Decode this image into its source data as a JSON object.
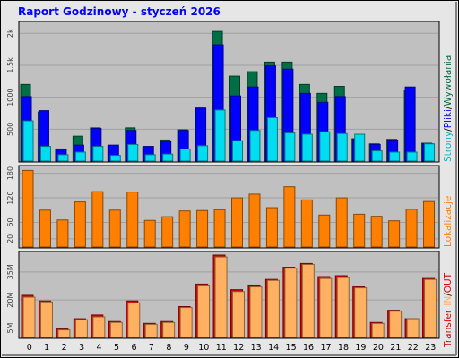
{
  "window": {
    "title": "Raport Godzinowy -  styczeń 2026"
  },
  "colors": {
    "background": "#e6e6e6",
    "plot_background": "#c0c0c0",
    "title_text": "#0000ff",
    "pages": "#006e46",
    "files": "#0000ff",
    "hits": "#00dcf0",
    "visits": "#ff8000",
    "kbytes_out": "#dc0000",
    "kbytes_in": "#ffb060"
  },
  "legend": {
    "strony": "Strony",
    "sep1": "/",
    "pliki": "Pliki",
    "sep2": "/",
    "wywolania": "Wywołania",
    "lokalizacje": "Lokalizacje",
    "transfer": "Transfer",
    "in": "IN",
    "sep3": "/",
    "out": "OUT"
  },
  "chart_data": [
    {
      "type": "bar",
      "name": "requests",
      "categories": [
        "0",
        "1",
        "2",
        "3",
        "4",
        "5",
        "6",
        "7",
        "8",
        "9",
        "10",
        "11",
        "12",
        "13",
        "14",
        "15",
        "16",
        "17",
        "18",
        "19",
        "20",
        "21",
        "22",
        "23"
      ],
      "ytick_labels": [
        "2k",
        "1.5k",
        "1000",
        "500"
      ],
      "ytick_values": [
        2000,
        1500,
        1000,
        500
      ],
      "ylim": [
        0,
        2130
      ],
      "series": [
        {
          "name": "Strony",
          "values": [
            1200,
            770,
            180,
            390,
            520,
            240,
            520,
            220,
            330,
            490,
            830,
            2030,
            1330,
            1400,
            1550,
            1550,
            1200,
            1060,
            1170,
            350,
            270,
            340,
            1100,
            280
          ]
        },
        {
          "name": "Pliki",
          "values": [
            1010,
            790,
            190,
            250,
            510,
            250,
            480,
            230,
            310,
            480,
            830,
            1820,
            1020,
            1160,
            1490,
            1440,
            1060,
            920,
            1010,
            340,
            260,
            330,
            1160,
            270
          ]
        },
        {
          "name": "Wywołania",
          "values": [
            630,
            230,
            100,
            140,
            230,
            90,
            260,
            100,
            110,
            190,
            240,
            800,
            320,
            480,
            680,
            440,
            420,
            460,
            430,
            420,
            160,
            140,
            140,
            270
          ]
        }
      ]
    },
    {
      "type": "bar",
      "name": "visits",
      "categories": [
        "0",
        "1",
        "2",
        "3",
        "4",
        "5",
        "6",
        "7",
        "8",
        "9",
        "10",
        "11",
        "12",
        "13",
        "14",
        "15",
        "16",
        "17",
        "18",
        "19",
        "20",
        "21",
        "22",
        "23"
      ],
      "ytick_labels": [
        "180",
        "120",
        "60",
        "20"
      ],
      "ytick_values": [
        180,
        120,
        60,
        20
      ],
      "ylim": [
        0,
        190
      ],
      "series": [
        {
          "name": "Lokalizacje",
          "values": [
            187,
            90,
            66,
            110,
            135,
            90,
            134,
            65,
            74,
            88,
            89,
            91,
            120,
            129,
            96,
            147,
            115,
            78,
            120,
            80,
            75,
            64,
            92,
            111
          ]
        }
      ]
    },
    {
      "type": "bar",
      "name": "transfer",
      "categories": [
        "0",
        "1",
        "2",
        "3",
        "4",
        "5",
        "6",
        "7",
        "8",
        "9",
        "10",
        "11",
        "12",
        "13",
        "14",
        "15",
        "16",
        "17",
        "18",
        "19",
        "20",
        "21",
        "22",
        "23"
      ],
      "ytick_labels": [
        "35M",
        "20M",
        "5M"
      ],
      "ytick_values": [
        35,
        20,
        5
      ],
      "ylim": [
        0,
        44
      ],
      "series": [
        {
          "name": "OUT",
          "values": [
            22.5,
            19.5,
            4.5,
            10.0,
            12.0,
            8.5,
            19.5,
            7.5,
            8.5,
            16.5,
            28.5,
            44.0,
            25.5,
            28.0,
            31.0,
            37.5,
            39.5,
            32.5,
            33.0,
            27.0,
            8.0,
            14.5,
            10.0,
            31.5
          ]
        },
        {
          "name": "IN",
          "values": [
            21.5,
            19.0,
            4.0,
            9.5,
            11.0,
            8.0,
            18.5,
            7.0,
            8.0,
            16.0,
            28.0,
            43.0,
            24.5,
            27.0,
            30.5,
            37.0,
            39.0,
            31.5,
            32.0,
            26.5,
            7.5,
            14.0,
            10.0,
            31.0
          ]
        }
      ]
    }
  ]
}
